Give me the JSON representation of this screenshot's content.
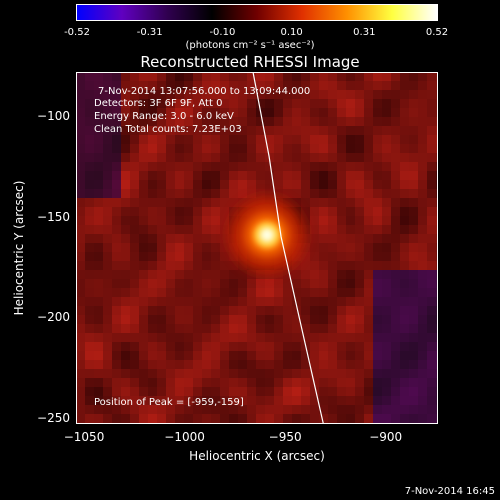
{
  "colorbar": {
    "ticks": [
      "-0.52",
      "-0.31",
      "-0.10",
      "0.10",
      "0.31",
      "0.52"
    ],
    "tick_values": [
      -0.52,
      -0.31,
      -0.1,
      0.1,
      0.31,
      0.52
    ],
    "range": [
      -0.52,
      0.52
    ],
    "units": "(photons cm⁻² s⁻¹ asec⁻²)",
    "colors": [
      "#0000ff",
      "#6000c0",
      "#300050",
      "#000000",
      "#700000",
      "#e03000",
      "#ff9000",
      "#ffff40",
      "#ffffff"
    ]
  },
  "annotations": {
    "time": "7-Nov-2014 13:07:56.000 to 13:09:44.000",
    "detectors": "Detectors: 3F 6F 9F, Att 0",
    "energy": "Energy Range: 3.0 - 6.0 keV",
    "method": "Clean    Total counts: 7.23E+03",
    "peak": "Position of Peak = [-959,-159]"
  },
  "footer": {
    "timestamp": "7-Nov-2014 16:45"
  },
  "chart_data": {
    "type": "heatmap",
    "title": "Reconstructed RHESSI Image",
    "xlabel": "Heliocentric X (arcsec)",
    "ylabel": "Heliocentric Y (arcsec)",
    "xlim": [
      -1054,
      -874
    ],
    "ylim": [
      -253,
      -78
    ],
    "xticks": [
      -1050,
      -1000,
      -950,
      -900
    ],
    "xtick_labels": [
      "−1050",
      "−1000",
      "−950",
      "−900"
    ],
    "yticks": [
      -100,
      -150,
      -200,
      -250
    ],
    "ytick_labels": [
      "−100",
      "−150",
      "−200",
      "−250"
    ],
    "peak": {
      "x": -959,
      "y": -159,
      "value": 0.52
    },
    "limb_line": [
      {
        "x": -966,
        "y": -78
      },
      {
        "x": -958,
        "y": -120
      },
      {
        "x": -952,
        "y": -160
      },
      {
        "x": -943,
        "y": -200
      },
      {
        "x": -931,
        "y": -253
      }
    ]
  }
}
